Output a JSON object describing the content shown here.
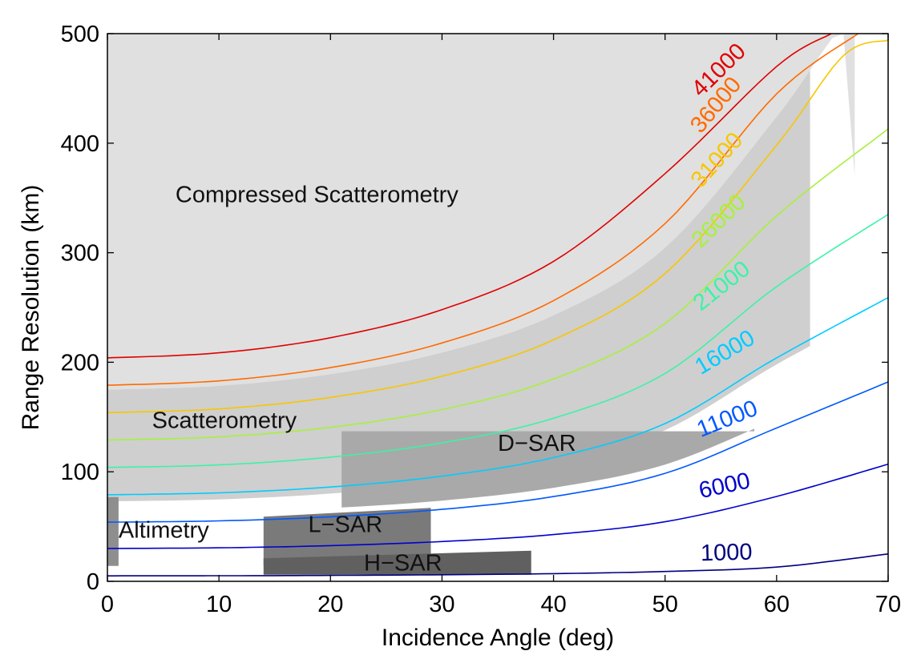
{
  "chart_data": {
    "type": "line",
    "xlabel": "Incidence Angle (deg)",
    "ylabel": "Range Resolution (km)",
    "xlim": [
      0,
      70
    ],
    "ylim": [
      0,
      500
    ],
    "xticks": [
      0,
      10,
      20,
      30,
      40,
      50,
      60,
      70
    ],
    "yticks": [
      0,
      100,
      200,
      300,
      400,
      500
    ],
    "xtick_labels": [
      "0",
      "10",
      "20",
      "30",
      "40",
      "50",
      "60",
      "70"
    ],
    "ytick_labels": [
      "0",
      "100",
      "200",
      "300",
      "400",
      "500"
    ],
    "grid": false,
    "legend": "none",
    "series": [
      {
        "name": "1000",
        "color": "#00007f",
        "x": [
          0,
          10,
          20,
          30,
          40,
          50,
          60,
          70
        ],
        "values": [
          5,
          5.1,
          5.4,
          6,
          7,
          9,
          13,
          25
        ]
      },
      {
        "name": "6000",
        "color": "#0000cd",
        "x": [
          0,
          10,
          20,
          30,
          40,
          50,
          60,
          70
        ],
        "values": [
          30,
          30.6,
          32.6,
          36.3,
          42.7,
          54.4,
          77.5,
          107
        ]
      },
      {
        "name": "11000",
        "color": "#0058ff",
        "x": [
          0,
          10,
          20,
          30,
          40,
          50,
          60,
          70
        ],
        "values": [
          54,
          55.2,
          58.9,
          65.7,
          77.4,
          98.6,
          140,
          182
        ]
      },
      {
        "name": "16000",
        "color": "#00ccff",
        "x": [
          0,
          10,
          20,
          30,
          40,
          50,
          60,
          70
        ],
        "values": [
          79,
          80.8,
          86.1,
          96,
          113,
          144,
          204,
          259
        ]
      },
      {
        "name": "21000",
        "color": "#3df2a8",
        "x": [
          0,
          10,
          20,
          30,
          40,
          50,
          60,
          70
        ],
        "values": [
          104,
          106.3,
          113.4,
          126.4,
          148.9,
          189.8,
          269,
          335
        ]
      },
      {
        "name": "26000",
        "color": "#a8f03c",
        "x": [
          0,
          10,
          20,
          30,
          40,
          50,
          60,
          70
        ],
        "values": [
          129,
          131.9,
          140.6,
          156.8,
          184.7,
          235.4,
          333.6,
          413
        ]
      },
      {
        "name": "31000",
        "color": "#f7c600",
        "x": [
          0,
          10,
          20,
          30,
          40,
          50,
          60,
          66,
          70
        ],
        "values": [
          154,
          157.4,
          167.9,
          187.2,
          220.5,
          281,
          398.2,
          480,
          494
        ]
      },
      {
        "name": "36000",
        "color": "#ff6a00",
        "x": [
          0,
          10,
          20,
          30,
          40,
          50,
          60,
          67.3
        ],
        "values": [
          179,
          183,
          195.1,
          217.6,
          256.3,
          326.6,
          445,
          500
        ]
      },
      {
        "name": "41000",
        "color": "#e00000",
        "x": [
          0,
          10,
          20,
          30,
          40,
          50,
          60,
          64.9
        ],
        "values": [
          204,
          208.6,
          222.4,
          248,
          292.1,
          372.2,
          470,
          500
        ]
      }
    ],
    "annotations": [
      {
        "text": "Compressed Scatterometry",
        "x": 6.1,
        "y": 346
      },
      {
        "text": "Scatterometry",
        "x": 4,
        "y": 140
      },
      {
        "text": "D−SAR",
        "x": 35,
        "y": 119
      },
      {
        "text": "Altimetry",
        "x": 1,
        "y": 40
      },
      {
        "text": "L−SAR",
        "x": 18,
        "y": 45
      },
      {
        "text": "H−SAR",
        "x": 23,
        "y": 10
      }
    ],
    "regions": [
      {
        "name": "Compressed Scatterometry",
        "color": "#e0e0e0"
      },
      {
        "name": "Scatterometry",
        "color": "#cfcfcf"
      },
      {
        "name": "D−SAR",
        "color": "#a9a9a9",
        "x": [
          21,
          58
        ],
        "y_bottom": [
          63,
          122
        ]
      },
      {
        "name": "Altimetry",
        "color": "#8e8e8e",
        "x": [
          0,
          1
        ],
        "y": [
          14,
          77
        ]
      },
      {
        "name": "L−SAR",
        "color": "#7a7a7a",
        "x": [
          14,
          29
        ],
        "y": [
          14,
          67
        ]
      },
      {
        "name": "H−SAR",
        "color": "#606060",
        "x": [
          14,
          38
        ],
        "y": [
          5,
          27
        ]
      }
    ]
  }
}
